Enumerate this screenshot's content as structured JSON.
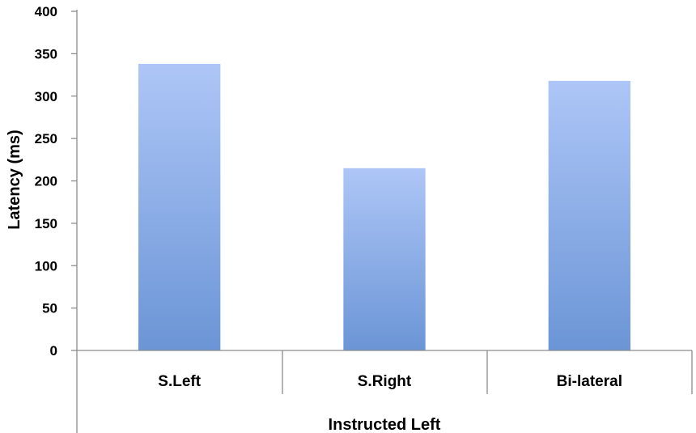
{
  "chart_data": {
    "type": "bar",
    "categories": [
      "S.Left",
      "S.Right",
      "Bi-lateral"
    ],
    "values": [
      338,
      215,
      318
    ],
    "title": "",
    "xlabel": "Instructed Left",
    "ylabel": "Latency (ms)",
    "ylim": [
      0,
      400
    ],
    "yticks": [
      0,
      50,
      100,
      150,
      200,
      250,
      300,
      350,
      400
    ],
    "grid": false,
    "legend": "none",
    "bar_color_top": "#aec6f7",
    "bar_color_bottom": "#6b95d6"
  }
}
